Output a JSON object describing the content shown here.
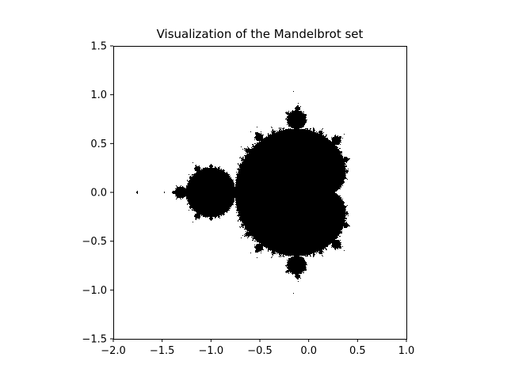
{
  "chart_data": {
    "type": "heatmap",
    "title": "Visualization of the Mandelbrot set",
    "xlabel": "",
    "ylabel": "",
    "xlim": [
      -2.0,
      1.0
    ],
    "ylim": [
      -1.5,
      1.5
    ],
    "xticks": [
      "-2.0",
      "-1.5",
      "-1.0",
      "-0.5",
      "0.0",
      "0.5",
      "1.0"
    ],
    "yticks": [
      "-1.5",
      "-1.0",
      "-0.5",
      "0.0",
      "0.5",
      "1.0",
      "1.5"
    ],
    "grid": false,
    "colors": {
      "set": "#000000",
      "background": "#ffffff"
    }
  }
}
